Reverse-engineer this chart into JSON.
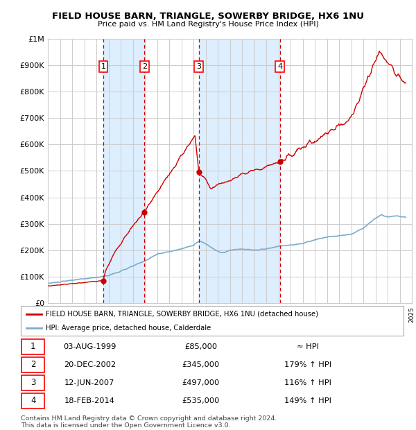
{
  "title": "FIELD HOUSE BARN, TRIANGLE, SOWERBY BRIDGE, HX6 1NU",
  "subtitle": "Price paid vs. HM Land Registry's House Price Index (HPI)",
  "ylabel_ticks": [
    "£0",
    "£100K",
    "£200K",
    "£300K",
    "£400K",
    "£500K",
    "£600K",
    "£700K",
    "£800K",
    "£900K",
    "£1M"
  ],
  "ytick_values": [
    0,
    100000,
    200000,
    300000,
    400000,
    500000,
    600000,
    700000,
    800000,
    900000,
    1000000
  ],
  "xmin": 1995,
  "xmax": 2025,
  "ymin": 0,
  "ymax": 1000000,
  "sales": [
    {
      "num": 1,
      "date_str": "03-AUG-1999",
      "year": 1999.58,
      "price": 85000,
      "label": "≈ HPI"
    },
    {
      "num": 2,
      "date_str": "20-DEC-2002",
      "year": 2002.96,
      "price": 345000,
      "label": "179% ↑ HPI"
    },
    {
      "num": 3,
      "date_str": "12-JUN-2007",
      "year": 2007.44,
      "price": 497000,
      "label": "116% ↑ HPI"
    },
    {
      "num": 4,
      "date_str": "18-FEB-2014",
      "year": 2014.12,
      "price": 535000,
      "label": "149% ↑ HPI"
    }
  ],
  "legend_property": "FIELD HOUSE BARN, TRIANGLE, SOWERBY BRIDGE, HX6 1NU (detached house)",
  "legend_hpi": "HPI: Average price, detached house, Calderdale",
  "footer": "Contains HM Land Registry data © Crown copyright and database right 2024.\nThis data is licensed under the Open Government Licence v3.0.",
  "property_color": "#cc0000",
  "hpi_color": "#7aaccc",
  "shade_color": "#ddeeff",
  "grid_color": "#cccccc",
  "bg_color": "#ffffff"
}
